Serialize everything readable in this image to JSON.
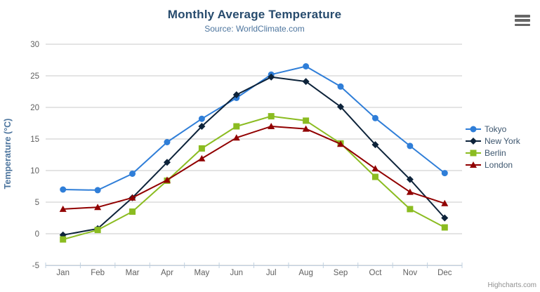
{
  "header": {
    "title": "Monthly Average Temperature",
    "subtitle": "Source: WorldClimate.com"
  },
  "export_menu_icon": "hamburger-icon",
  "credits": "Highcharts.com",
  "colors": {
    "title": "#274b6d",
    "subtitle": "#4d759e",
    "axis_title": "#4d759e",
    "tick_label": "#606060",
    "gridline": "#c8c8c8",
    "axis_line": "#c0d0e0",
    "legend_text": "#3e576f",
    "credits_text": "#909090",
    "menu_icon": "#666666"
  },
  "chart_data": {
    "type": "line",
    "title": "Monthly Average Temperature",
    "subtitle": "Source: WorldClimate.com",
    "xlabel": "",
    "ylabel": "Temperature (°C)",
    "categories": [
      "Jan",
      "Feb",
      "Mar",
      "Apr",
      "May",
      "Jun",
      "Jul",
      "Aug",
      "Sep",
      "Oct",
      "Nov",
      "Dec"
    ],
    "series": [
      {
        "name": "Tokyo",
        "color": "#2f7ed8",
        "marker": "circle",
        "values": [
          7.0,
          6.9,
          9.5,
          14.5,
          18.2,
          21.5,
          25.2,
          26.5,
          23.3,
          18.3,
          13.9,
          9.6
        ]
      },
      {
        "name": "New York",
        "color": "#0d233a",
        "marker": "diamond",
        "values": [
          -0.2,
          0.8,
          5.7,
          11.3,
          17.0,
          22.0,
          24.8,
          24.1,
          20.1,
          14.1,
          8.6,
          2.5
        ]
      },
      {
        "name": "Berlin",
        "color": "#8bbc21",
        "marker": "square",
        "values": [
          -0.9,
          0.6,
          3.5,
          8.4,
          13.5,
          17.0,
          18.6,
          17.9,
          14.3,
          9.0,
          3.9,
          1.0
        ]
      },
      {
        "name": "London",
        "color": "#910000",
        "marker": "triangle",
        "values": [
          3.9,
          4.2,
          5.7,
          8.5,
          11.9,
          15.2,
          17.0,
          16.6,
          14.2,
          10.3,
          6.6,
          4.8
        ]
      }
    ],
    "ylim": [
      -5,
      30
    ],
    "ytick_step": 5,
    "grid": true,
    "legend_position": "right"
  }
}
